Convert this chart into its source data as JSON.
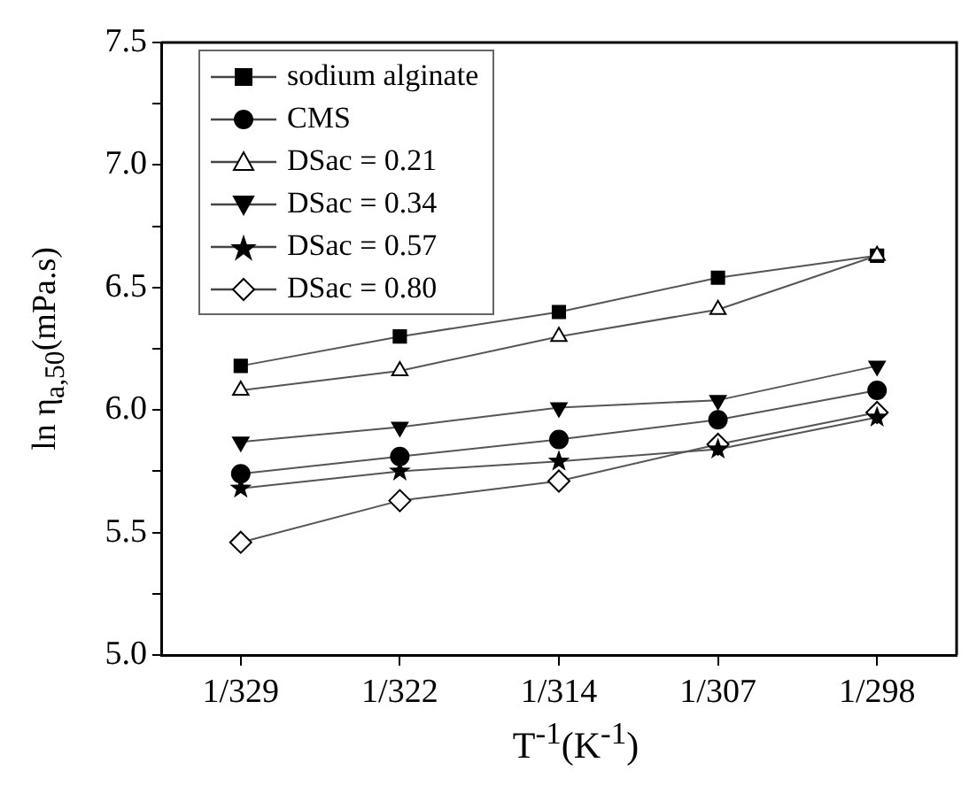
{
  "chart_data": {
    "type": "line",
    "xlabel": "T$^{-1}$(K$^{-1}$)",
    "ylabel": "ln η$_{a,50}$(mPa.s)",
    "categories": [
      "1/329",
      "1/322",
      "1/314",
      "1/307",
      "1/298"
    ],
    "ylim": [
      5,
      7.5
    ],
    "yticks": [
      {
        "value": 5,
        "label": "5.0"
      },
      {
        "value": 5.25,
        "label": null
      },
      {
        "value": 5.5,
        "label": "5.5"
      },
      {
        "value": 5.75,
        "label": null
      },
      {
        "value": 6,
        "label": "6.0"
      },
      {
        "value": 6.25,
        "label": null
      },
      {
        "value": 6.5,
        "label": "6.5"
      },
      {
        "value": 6.75,
        "label": null
      },
      {
        "value": 7,
        "label": "7.0"
      },
      {
        "value": 7.25,
        "label": null
      },
      {
        "value": 7.5,
        "label": "7.5"
      }
    ],
    "grid": false,
    "legend": "top left",
    "line_style": "solid",
    "series": [
      {
        "name": "sodium alginate",
        "color": "#000000",
        "marker": "square",
        "values": [
          6.18,
          6.3,
          6.4,
          6.54,
          6.63
        ]
      },
      {
        "name": "CMS",
        "color": "#000000",
        "marker": "circle",
        "values": [
          5.74,
          5.81,
          5.88,
          5.96,
          6.08
        ]
      },
      {
        "name": "DSac = 0.21",
        "color": "#000000",
        "marker": "triangle",
        "values": [
          6.08,
          6.16,
          6.3,
          6.41,
          6.63
        ]
      },
      {
        "name": "DSac = 0.34",
        "color": "#000000",
        "marker": "triangle_down",
        "values": [
          5.87,
          5.93,
          6.01,
          6.04,
          6.18
        ]
      },
      {
        "name": "DSac = 0.57",
        "color": "#000000",
        "marker": "star",
        "values": [
          5.68,
          5.75,
          5.79,
          5.84,
          5.97
        ]
      },
      {
        "name": "DSac = 0.80",
        "color": "#000000",
        "marker": "diamond",
        "values": [
          5.46,
          5.63,
          5.71,
          5.86,
          5.99
        ]
      }
    ]
  }
}
